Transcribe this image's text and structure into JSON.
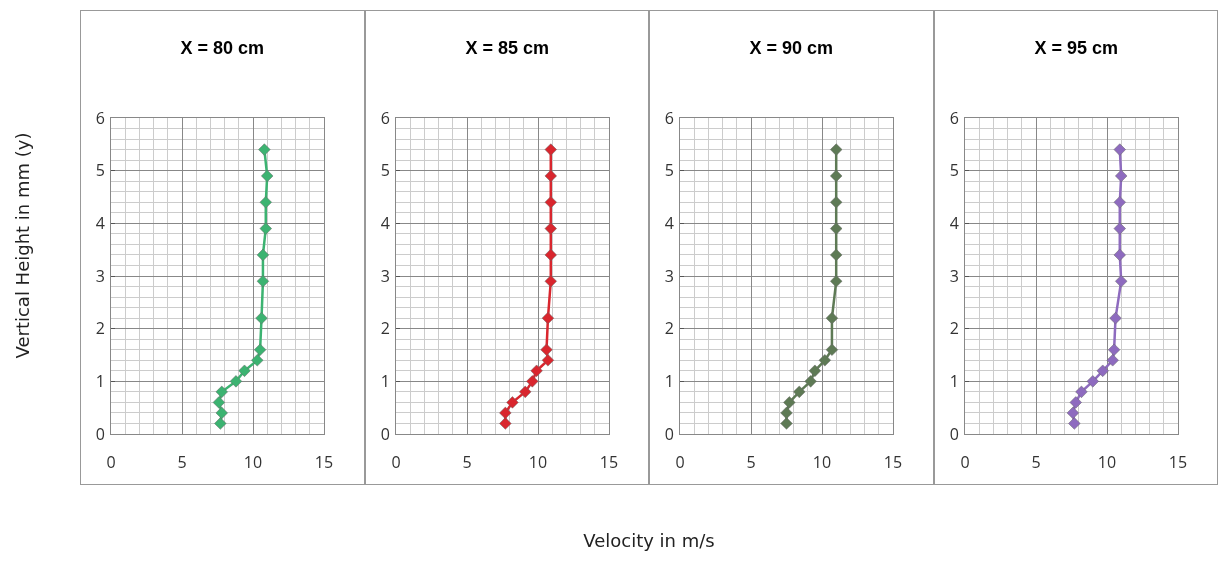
{
  "chart_data": [
    {
      "type": "line",
      "title": "X = 80 cm",
      "ylabel": "Vertical Height in mm (y)",
      "xlim": [
        0,
        15
      ],
      "xticks": [
        0,
        5,
        10,
        15
      ],
      "ylim": [
        0,
        6
      ],
      "yticks": [
        0,
        1,
        2,
        3,
        4,
        5,
        6
      ],
      "grid": true,
      "marker": "diamond",
      "series": [
        {
          "color": "#3cb371",
          "x": [
            7.7,
            7.8,
            7.6,
            7.8,
            8.8,
            9.4,
            10.3,
            10.5,
            10.6,
            10.7,
            10.7,
            10.9,
            10.9,
            11.0,
            10.8
          ],
          "values": [
            0.2,
            0.4,
            0.6,
            0.8,
            1.0,
            1.2,
            1.4,
            1.6,
            2.2,
            2.9,
            3.4,
            3.9,
            4.4,
            4.9,
            5.4
          ]
        }
      ]
    },
    {
      "type": "line",
      "title": "X = 85 cm",
      "xlabel": "Velocity in m/s",
      "xlim": [
        0,
        15
      ],
      "xticks": [
        0,
        5,
        10,
        15
      ],
      "ylim": [
        0,
        6
      ],
      "yticks": [
        0,
        1,
        2,
        3,
        4,
        5,
        6
      ],
      "grid": true,
      "marker": "diamond",
      "series": [
        {
          "color": "#d9262e",
          "x": [
            7.7,
            7.7,
            8.2,
            9.1,
            9.6,
            9.9,
            10.7,
            10.6,
            10.7,
            10.9,
            10.9,
            10.9,
            10.9,
            10.9,
            10.9
          ],
          "values": [
            0.2,
            0.4,
            0.6,
            0.8,
            1.0,
            1.2,
            1.4,
            1.6,
            2.2,
            2.9,
            3.4,
            3.9,
            4.4,
            4.9,
            5.4
          ]
        }
      ]
    },
    {
      "type": "line",
      "title": "X = 90 cm",
      "xlim": [
        0,
        15
      ],
      "xticks": [
        0,
        5,
        10,
        15
      ],
      "ylim": [
        0,
        6
      ],
      "yticks": [
        0,
        1,
        2,
        3,
        4,
        5,
        6
      ],
      "grid": true,
      "marker": "diamond",
      "series": [
        {
          "color": "#5e7a55",
          "x": [
            7.5,
            7.5,
            7.7,
            8.4,
            9.2,
            9.5,
            10.2,
            10.7,
            10.7,
            11.0,
            11.0,
            11.0,
            11.0,
            11.0,
            11.0
          ],
          "values": [
            0.2,
            0.4,
            0.6,
            0.8,
            1.0,
            1.2,
            1.4,
            1.6,
            2.2,
            2.9,
            3.4,
            3.9,
            4.4,
            4.9,
            5.4
          ]
        }
      ]
    },
    {
      "type": "line",
      "title": "X = 95 cm",
      "xlim": [
        0,
        15
      ],
      "xticks": [
        0,
        5,
        10,
        15
      ],
      "ylim": [
        0,
        6
      ],
      "yticks": [
        0,
        1,
        2,
        3,
        4,
        5,
        6
      ],
      "grid": true,
      "marker": "diamond",
      "series": [
        {
          "color": "#8e6bbf",
          "x": [
            7.7,
            7.6,
            7.8,
            8.2,
            9.0,
            9.7,
            10.4,
            10.5,
            10.6,
            11.0,
            10.9,
            10.9,
            10.9,
            11.0,
            10.9
          ],
          "values": [
            0.2,
            0.4,
            0.6,
            0.8,
            1.0,
            1.2,
            1.4,
            1.6,
            2.2,
            2.9,
            3.4,
            3.9,
            4.4,
            4.9,
            5.4
          ]
        }
      ]
    }
  ]
}
